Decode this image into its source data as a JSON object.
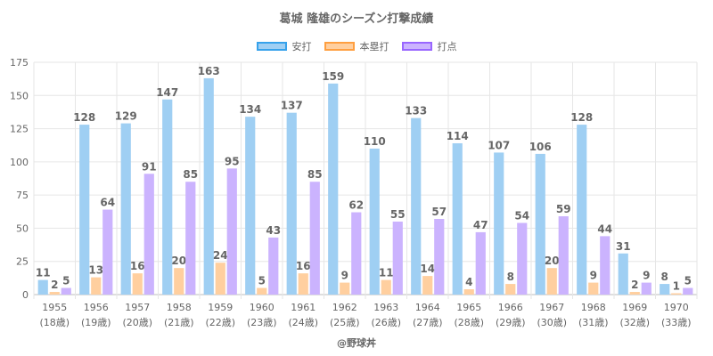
{
  "chart_data": {
    "type": "bar",
    "title": "葛城 隆雄のシーズン打撃成績",
    "categories": [
      "1955",
      "1956",
      "1957",
      "1958",
      "1959",
      "1960",
      "1961",
      "1962",
      "1963",
      "1964",
      "1965",
      "1966",
      "1967",
      "1968",
      "1969",
      "1970"
    ],
    "sub_categories": [
      "(18歳)",
      "(19歳)",
      "(20歳)",
      "(21歳)",
      "(22歳)",
      "(23歳)",
      "(24歳)",
      "(25歳)",
      "(26歳)",
      "(27歳)",
      "(28歳)",
      "(29歳)",
      "(30歳)",
      "(31歳)",
      "(32歳)",
      "(33歳)"
    ],
    "series": [
      {
        "name": "安打",
        "color": "#9fcff3",
        "border": "#36a2eb",
        "values": [
          11,
          128,
          129,
          147,
          163,
          134,
          137,
          159,
          110,
          133,
          114,
          107,
          106,
          128,
          31,
          8
        ]
      },
      {
        "name": "本塁打",
        "color": "#ffcf9f",
        "border": "#ff9f40",
        "values": [
          2,
          13,
          16,
          20,
          24,
          5,
          16,
          9,
          11,
          14,
          4,
          8,
          20,
          9,
          2,
          1
        ]
      },
      {
        "name": "打点",
        "color": "#cbb3fe",
        "border": "#9966ff",
        "values": [
          5,
          64,
          91,
          85,
          95,
          43,
          85,
          62,
          55,
          57,
          47,
          54,
          59,
          44,
          9,
          5
        ]
      }
    ],
    "ylim": [
      0,
      175
    ],
    "yticks": [
      0,
      25,
      50,
      75,
      100,
      125,
      150,
      175
    ],
    "grid": true,
    "legend_position": "top"
  },
  "credit": "@野球丼"
}
